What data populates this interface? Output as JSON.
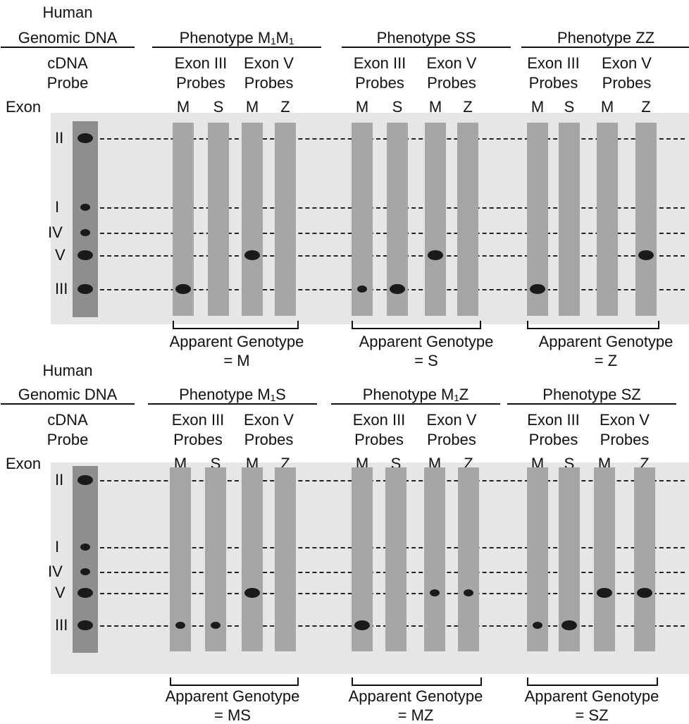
{
  "panels": [
    {
      "id": "top",
      "left_header": [
        "Human",
        "Genomic DNA",
        "cDNA",
        "Probe"
      ],
      "exon_label": "Exon",
      "exons": [
        "II",
        "I",
        "IV",
        "V",
        "III"
      ],
      "groups": [
        {
          "phenotype": "Phenotype M₁M₁",
          "exon3": "Exon III",
          "exon5": "Exon V",
          "probes": "Probes",
          "lanes": [
            "M",
            "S",
            "M",
            "Z"
          ],
          "apparent": "Apparent Genotype",
          "genotype": "= M"
        },
        {
          "phenotype": "Phenotype SS",
          "exon3": "Exon III",
          "exon5": "Exon V",
          "probes": "Probes",
          "lanes": [
            "M",
            "S",
            "M",
            "Z"
          ],
          "apparent": "Apparent Genotype",
          "genotype": "= S"
        },
        {
          "phenotype": "Phenotype ZZ",
          "exon3": "Exon III",
          "exon5": "Exon V",
          "probes": "Probes",
          "lanes": [
            "M",
            "S",
            "M",
            "Z"
          ],
          "apparent": "Apparent Genotype",
          "genotype": "= Z"
        }
      ]
    },
    {
      "id": "bottom",
      "left_header": [
        "Human",
        "Genomic DNA",
        "cDNA",
        "Probe"
      ],
      "exon_label": "Exon",
      "exons": [
        "II",
        "I",
        "IV",
        "V",
        "III"
      ],
      "groups": [
        {
          "phenotype": "Phenotype M₁S",
          "exon3": "Exon III",
          "exon5": "Exon V",
          "probes": "Probes",
          "lanes": [
            "M",
            "S",
            "M",
            "Z"
          ],
          "apparent": "Apparent Genotype",
          "genotype": "= MS"
        },
        {
          "phenotype": "Phenotype M₁Z",
          "exon3": "Exon III",
          "exon5": "Exon V",
          "probes": "Probes",
          "lanes": [
            "M",
            "S",
            "M",
            "Z"
          ],
          "apparent": "Apparent Genotype",
          "genotype": "= MZ"
        },
        {
          "phenotype": "Phenotype SZ",
          "exon3": "Exon III",
          "exon5": "Exon V",
          "probes": "Probes",
          "lanes": [
            "M",
            "S",
            "M",
            "Z"
          ],
          "apparent": "Apparent Genotype",
          "genotype": "= SZ"
        }
      ]
    }
  ],
  "colors": {
    "lane": "#a6a6a6",
    "band": "#1a1a1a",
    "background": "#e6e6e6"
  }
}
